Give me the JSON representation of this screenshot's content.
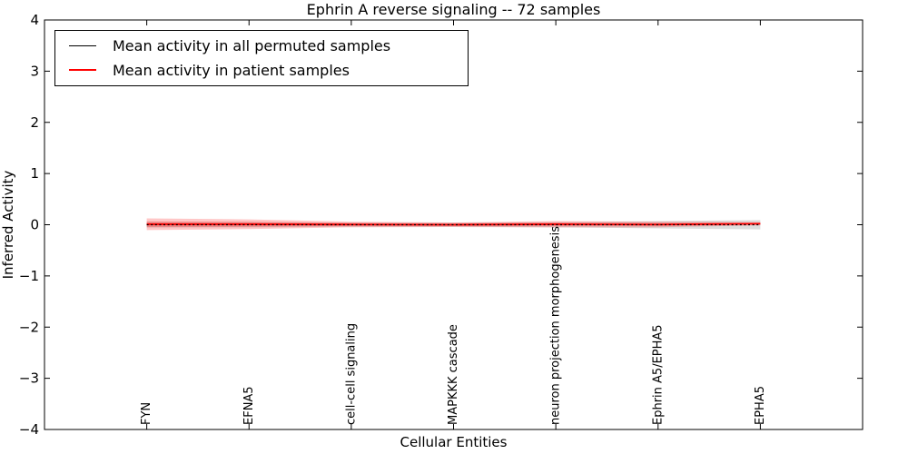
{
  "chart_data": {
    "type": "line",
    "title": "Ephrin A  reverse signaling -- 72 samples",
    "xlabel": "Cellular Entities",
    "ylabel": "Inferred Activity",
    "ylim": [
      -4,
      4
    ],
    "grid": false,
    "frame_color": "#000000",
    "background_color": "#ffffff",
    "legend_position": "upper left",
    "yticks": [
      4,
      3,
      2,
      1,
      0,
      -1,
      -2,
      -3,
      -4
    ],
    "ytick_labels": [
      "4",
      "3",
      "2",
      "1",
      "0",
      "−1",
      "−2",
      "−3",
      "−4"
    ],
    "categories": [
      "FYN",
      "EFNA5",
      "cell-cell signaling",
      "MAPKKK cascade",
      "neuron projection morphogenesis",
      "Ephrin A5/EPHA5",
      "EPHA5"
    ],
    "series": [
      {
        "name": "Mean activity in all permuted samples",
        "color": "#000000",
        "line_style": "dotted",
        "line_width": 1.3,
        "values": [
          0,
          0,
          0,
          0,
          0,
          0,
          0
        ],
        "band_halfwidth": [
          0.055,
          0.05,
          0.04,
          0.04,
          0.05,
          0.07,
          0.09
        ],
        "band_color": "#bbbbbb",
        "band_opacity": 0.5
      },
      {
        "name": "Mean activity in patient samples",
        "color": "#ff0000",
        "line_style": "solid",
        "line_width": 1.8,
        "values": [
          0.01,
          0.01,
          0.005,
          0.0,
          0.01,
          0.005,
          0.02
        ],
        "band_halfwidth": [
          0.115,
          0.095,
          0.055,
          0.045,
          0.062,
          0.055,
          0.03
        ],
        "band_inner_halfwidth": [
          0.055,
          0.048,
          0.028,
          0.022,
          0.03,
          0.027,
          0.015
        ],
        "band_color": "#ff0000",
        "band_opacity": 0.22
      }
    ]
  }
}
